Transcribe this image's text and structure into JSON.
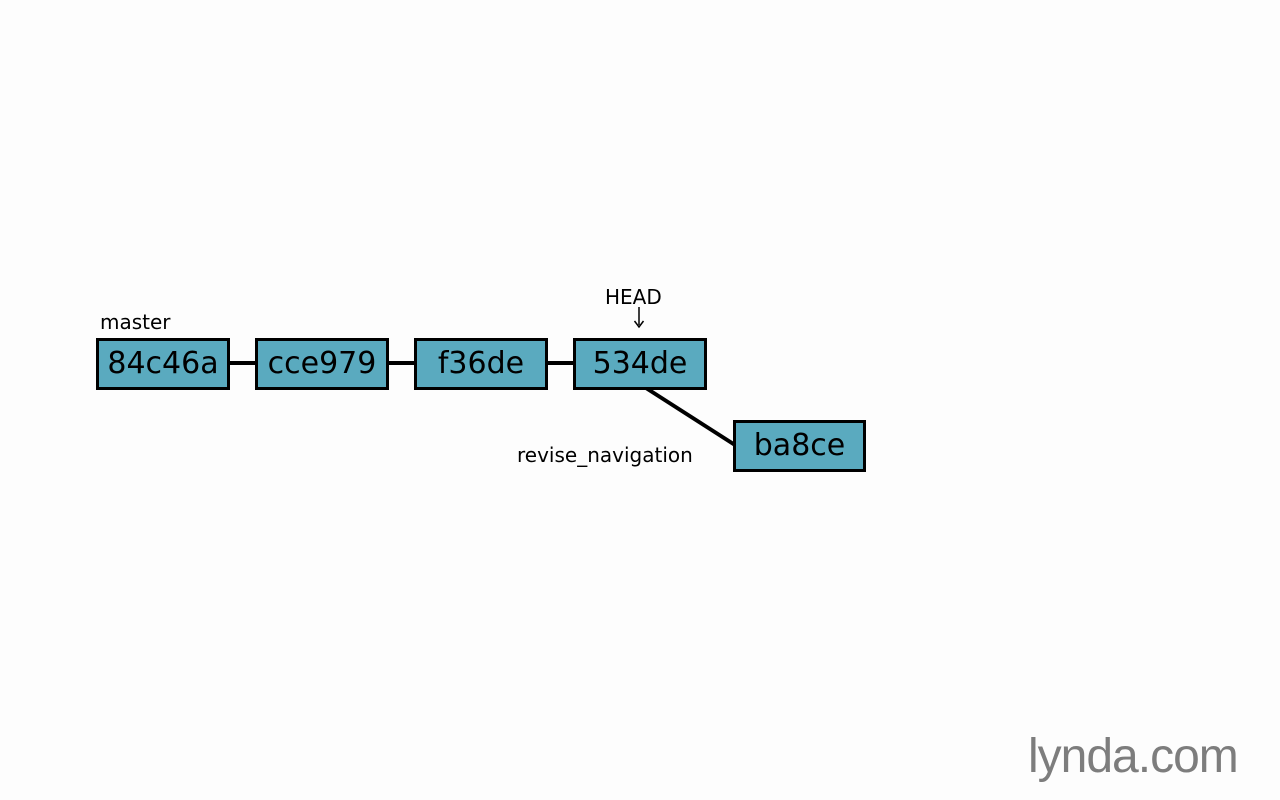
{
  "diagram": {
    "commits": [
      {
        "id": "84c46a"
      },
      {
        "id": "cce979"
      },
      {
        "id": "f36de"
      },
      {
        "id": "534de"
      },
      {
        "id": "ba8ce"
      }
    ],
    "labels": {
      "master": "master",
      "head": "HEAD",
      "branch": "revise_navigation"
    },
    "colors": {
      "commit_fill": "#5aaabf",
      "border": "#000000",
      "background": "#fdfdfd"
    }
  },
  "branding": {
    "logo": "lynda.com"
  }
}
